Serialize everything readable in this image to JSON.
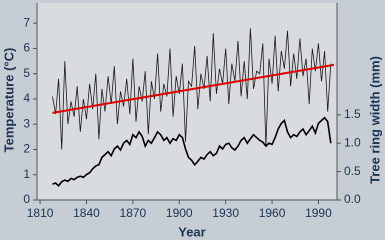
{
  "chart_data": {
    "type": "line",
    "xlabel": "Year",
    "ylabel": "Temperature (°C)",
    "y2label": "Tree ring width (mm)",
    "xlim": [
      1808,
      2002
    ],
    "xticks": [
      1810,
      1840,
      1870,
      1900,
      1930,
      1960,
      1990
    ],
    "ylim": [
      0,
      7.8
    ],
    "yticks": [
      0,
      1,
      2,
      3,
      4,
      5,
      6,
      7
    ],
    "y2lim": [
      0,
      3.47
    ],
    "y2ticks": [
      {
        "value": 0,
        "label": "0.0"
      },
      0.5,
      {
        "value": 1,
        "label": "1.0"
      },
      1.5
    ],
    "x": [
      1818,
      1820,
      1822,
      1824,
      1826,
      1828,
      1830,
      1832,
      1834,
      1836,
      1838,
      1840,
      1842,
      1844,
      1846,
      1848,
      1850,
      1852,
      1854,
      1856,
      1858,
      1860,
      1862,
      1864,
      1866,
      1868,
      1870,
      1872,
      1874,
      1876,
      1878,
      1880,
      1882,
      1884,
      1886,
      1888,
      1890,
      1892,
      1894,
      1896,
      1898,
      1900,
      1902,
      1904,
      1906,
      1908,
      1910,
      1912,
      1914,
      1916,
      1918,
      1920,
      1922,
      1924,
      1926,
      1928,
      1930,
      1932,
      1934,
      1936,
      1938,
      1940,
      1942,
      1944,
      1946,
      1948,
      1950,
      1952,
      1954,
      1956,
      1958,
      1960,
      1962,
      1964,
      1966,
      1968,
      1970,
      1972,
      1974,
      1976,
      1978,
      1980,
      1982,
      1984,
      1986,
      1988,
      1990,
      1992,
      1994,
      1996,
      1998
    ],
    "series": [
      {
        "color": "#1a1a1a",
        "values": [
          4.1,
          3.4,
          4.8,
          2.0,
          5.5,
          3.0,
          3.9,
          3.3,
          4.5,
          2.7,
          4.0,
          3.2,
          4.6,
          3.6,
          5.0,
          2.4,
          4.4,
          3.5,
          4.9,
          3.8,
          5.3,
          3.0,
          4.3,
          3.7,
          4.8,
          3.4,
          5.6,
          3.1,
          4.5,
          3.9,
          5.1,
          2.6,
          4.7,
          4.0,
          5.8,
          3.5,
          4.6,
          4.1,
          6.0,
          3.3,
          4.9,
          4.2,
          5.4,
          2.3,
          4.7,
          4.5,
          6.1,
          3.6,
          5.0,
          4.4,
          5.7,
          3.9,
          6.6,
          4.2,
          5.2,
          4.6,
          6.0,
          3.8,
          5.4,
          4.7,
          6.3,
          4.1,
          5.5,
          4.0,
          6.8,
          4.4,
          5.1,
          5.0,
          6.2,
          2.1,
          5.6,
          4.6,
          6.5,
          4.3,
          5.9,
          5.2,
          6.7,
          4.5,
          5.8,
          4.8,
          6.4,
          4.9,
          5.6,
          3.8,
          6.0,
          5.1,
          6.2,
          4.7,
          5.9,
          3.5,
          5.4
        ]
      },
      {
        "color": "#000000",
        "axis": "y2",
        "values": [
          0.28,
          0.3,
          0.25,
          0.32,
          0.35,
          0.33,
          0.38,
          0.36,
          0.4,
          0.42,
          0.4,
          0.45,
          0.48,
          0.55,
          0.6,
          0.62,
          0.75,
          0.8,
          0.85,
          0.78,
          0.9,
          0.95,
          0.88,
          1.0,
          1.05,
          0.98,
          1.15,
          1.1,
          1.2,
          1.12,
          0.95,
          1.05,
          1.0,
          1.1,
          1.2,
          1.15,
          1.05,
          1.1,
          1.0,
          1.08,
          1.05,
          1.15,
          1.1,
          0.9,
          0.75,
          0.7,
          0.62,
          0.68,
          0.75,
          0.72,
          0.8,
          0.85,
          0.78,
          0.82,
          0.95,
          0.9,
          0.98,
          1.0,
          0.92,
          0.88,
          0.95,
          1.05,
          1.1,
          1.0,
          1.08,
          1.15,
          1.1,
          1.05,
          1.02,
          0.95,
          1.0,
          0.98,
          1.1,
          1.25,
          1.35,
          1.4,
          1.2,
          1.1,
          1.15,
          1.12,
          1.2,
          1.25,
          1.15,
          1.22,
          1.3,
          1.18,
          1.35,
          1.4,
          1.45,
          1.38,
          1.0
        ]
      }
    ],
    "trend_line": {
      "color": "#e00000",
      "x": [
        1818,
        2000
      ],
      "values": [
        3.45,
        5.35
      ]
    }
  }
}
